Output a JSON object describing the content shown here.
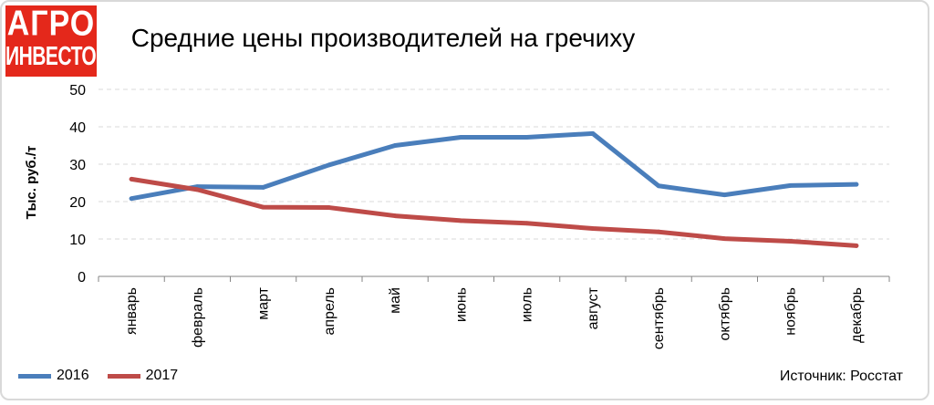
{
  "logo": {
    "line1": "АГРО",
    "line2": "ИНВЕСТОР"
  },
  "source": "Источник: Росстат",
  "colors": {
    "series_2016": "#4a7ebb",
    "series_2017": "#be4b48",
    "logo_bg": "#e4281b",
    "grid": "#d9d9d9"
  },
  "chart_data": {
    "type": "line",
    "title": "Средние цены производителей на гречиху",
    "ylabel": "Тыс. руб./т",
    "xlabel": "",
    "ylim": [
      0,
      50
    ],
    "yticks": [
      0,
      10,
      20,
      30,
      40,
      50
    ],
    "grid": true,
    "legend": "bottom-left",
    "categories": [
      "январь",
      "февраль",
      "март",
      "апрель",
      "май",
      "июнь",
      "июль",
      "август",
      "сентябрь",
      "октябрь",
      "ноябрь",
      "декабрь"
    ],
    "series": [
      {
        "name": "2016",
        "color": "#4a7ebb",
        "values": [
          20.8,
          24.0,
          23.8,
          29.8,
          35.0,
          37.2,
          37.2,
          38.2,
          24.2,
          21.8,
          24.3,
          24.6
        ]
      },
      {
        "name": "2017",
        "color": "#be4b48",
        "values": [
          26.0,
          23.2,
          18.5,
          18.4,
          16.2,
          14.9,
          14.2,
          12.8,
          11.9,
          10.1,
          9.4,
          8.2
        ]
      }
    ]
  }
}
